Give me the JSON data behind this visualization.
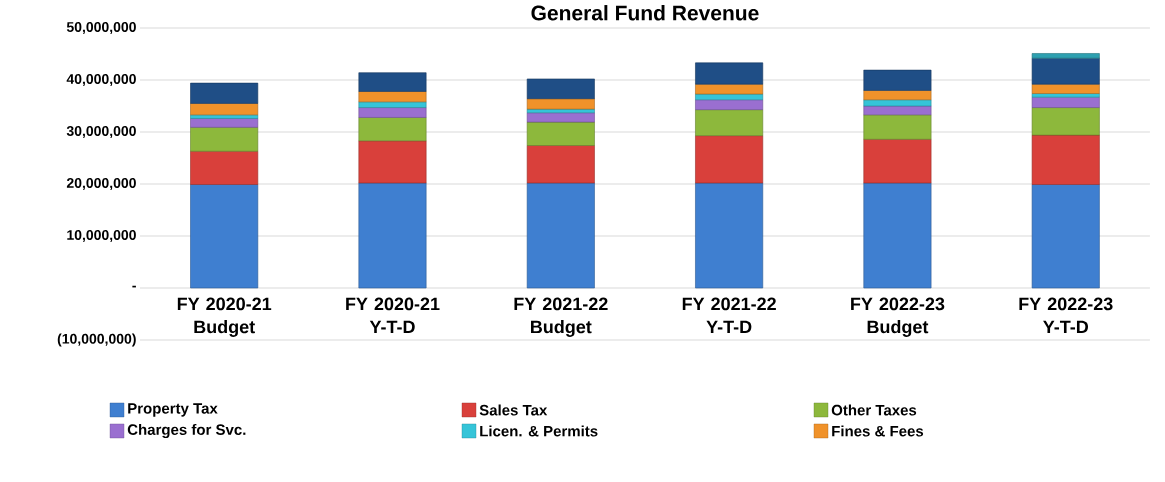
{
  "chart_data": {
    "type": "bar",
    "title": "General Fund Revenue",
    "stacked": true,
    "grid": "y",
    "legend": "bottom",
    "categories": [
      "FY 2020-21 Budget",
      "FY 2020-21 Y-T-D",
      "FY 2021-22 Budget",
      "FY 2021-22 Y-T-D",
      "FY 2022-23 Budget",
      "FY 2022-23 Y-T-D"
    ],
    "ylim": [
      -10000000,
      50000000
    ],
    "yticks": [
      {
        "value": -10000000,
        "label": "(10,000,000)"
      },
      {
        "value": 0,
        "label": "-"
      },
      {
        "value": 10000000,
        "label": "10,000,000"
      },
      {
        "value": 20000000,
        "label": "20,000,000"
      },
      {
        "value": 30000000,
        "label": "30,000,000"
      },
      {
        "value": 40000000,
        "label": "40,000,000"
      },
      {
        "value": 50000000,
        "label": "50,000,000"
      }
    ],
    "series": [
      {
        "name": "Property Tax",
        "color": "#3f7fd0",
        "values": [
          19900000,
          20200000,
          20200000,
          20200000,
          20200000,
          19900000
        ]
      },
      {
        "name": "Sales Tax",
        "color": "#d9403b",
        "values": [
          6400000,
          8100000,
          7200000,
          9100000,
          8400000,
          9500000
        ]
      },
      {
        "name": "Other Taxes",
        "color": "#8db83c",
        "values": [
          4600000,
          4500000,
          4500000,
          5000000,
          4700000,
          5300000
        ]
      },
      {
        "name": "Charges for Svc.",
        "color": "#9a6fd0",
        "values": [
          1700000,
          1900000,
          1800000,
          1900000,
          1700000,
          2000000
        ]
      },
      {
        "name": "Licen. & Permits",
        "color": "#35c4d8",
        "values": [
          700000,
          1100000,
          700000,
          1100000,
          1200000,
          700000
        ]
      },
      {
        "name": "Fines & Fees",
        "color": "#f0922a",
        "values": [
          2200000,
          2000000,
          2000000,
          1900000,
          1800000,
          1800000
        ]
      },
      {
        "color": "#1f4e86",
        "values": [
          3900000,
          3600000,
          3800000,
          4100000,
          3900000,
          5000000
        ]
      },
      {
        "color": "#2ea0b0",
        "values": [
          null,
          null,
          null,
          null,
          null,
          900000
        ]
      }
    ]
  }
}
